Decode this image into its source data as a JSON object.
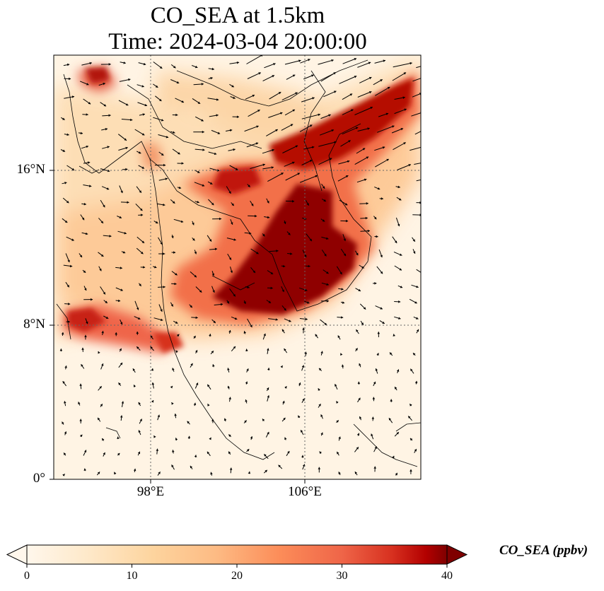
{
  "map": {
    "title_line1": "CO_SEA at 1.5km",
    "title_line2": "Time: 2024-03-04 20:00:00",
    "lat_labels": [
      "16°N",
      "8°N",
      "0°"
    ],
    "lon_labels": [
      "98°E",
      "106°E"
    ],
    "gridline_style": "dotted",
    "colormap": "OrRd",
    "colors": {
      "low": "#fff7ec",
      "mid": "#fc8d59",
      "high": "#7f0000",
      "coast": "#000000"
    }
  },
  "colorbar": {
    "label": "CO_SEA (ppbv)",
    "ticks": [
      "0",
      "10",
      "20",
      "30",
      "40"
    ],
    "extend": "both"
  }
}
